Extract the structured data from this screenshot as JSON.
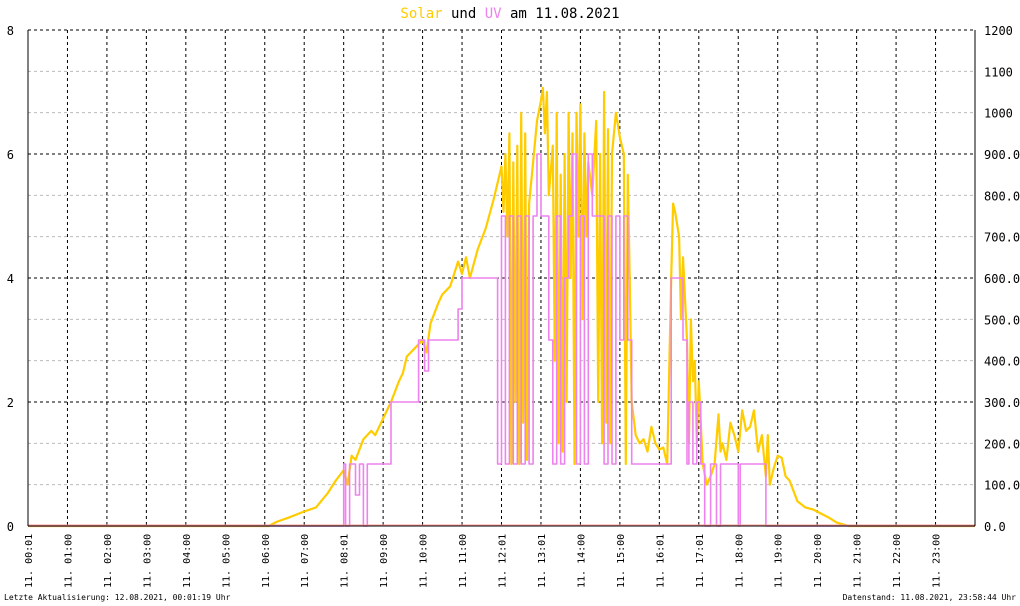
{
  "chart_data": {
    "type": "line",
    "title": {
      "solar_word": "Solar",
      "und_word": " und ",
      "uv_word": "UV",
      "rest": " am 11.08.2021"
    },
    "colors": {
      "solar": "#ffcc00",
      "uv": "#ee82ee",
      "baseline": "#ff9999",
      "grid": "#000000",
      "minor_grid": "#bbbbbb"
    },
    "y_left": {
      "min": 0,
      "max": 8,
      "ticks": [
        "0",
        "2",
        "4",
        "6",
        "8"
      ]
    },
    "y_right": {
      "min": 0,
      "max": 1200,
      "ticks": [
        "0.0",
        "100.0",
        "200.0",
        "300.0",
        "400.0",
        "500.0",
        "600.0",
        "700.0",
        "800.0",
        "900.0",
        "1000",
        "1100",
        "1200"
      ]
    },
    "x_labels": [
      "11. 00:01",
      "11. 01:00",
      "11. 02:00",
      "11. 03:00",
      "11. 04:00",
      "11. 05:00",
      "11. 06:00",
      "11. 07:00",
      "11. 08:01",
      "11. 09:00",
      "11. 10:00",
      "11. 11:00",
      "11. 12:01",
      "11. 13:01",
      "11. 14:00",
      "11. 15:00",
      "11. 16:01",
      "11. 17:01",
      "11. 18:00",
      "11. 19:00",
      "11. 20:00",
      "11. 21:00",
      "11. 22:00",
      "11. 23:00"
    ],
    "grid": true,
    "series": [
      {
        "name": "Solar",
        "axis": "right",
        "points": [
          [
            0.0,
            0
          ],
          [
            6.1,
            0
          ],
          [
            6.3,
            10
          ],
          [
            6.6,
            20
          ],
          [
            7.0,
            35
          ],
          [
            7.3,
            45
          ],
          [
            7.6,
            80
          ],
          [
            7.8,
            110
          ],
          [
            8.0,
            135
          ],
          [
            8.1,
            100
          ],
          [
            8.2,
            170
          ],
          [
            8.3,
            160
          ],
          [
            8.5,
            210
          ],
          [
            8.7,
            230
          ],
          [
            8.8,
            220
          ],
          [
            9.0,
            260
          ],
          [
            9.2,
            300
          ],
          [
            9.4,
            350
          ],
          [
            9.5,
            370
          ],
          [
            9.6,
            410
          ],
          [
            9.8,
            430
          ],
          [
            10.0,
            450
          ],
          [
            10.1,
            420
          ],
          [
            10.2,
            490
          ],
          [
            10.4,
            540
          ],
          [
            10.5,
            560
          ],
          [
            10.7,
            580
          ],
          [
            10.9,
            640
          ],
          [
            11.0,
            610
          ],
          [
            11.1,
            650
          ],
          [
            11.2,
            600
          ],
          [
            11.4,
            670
          ],
          [
            11.6,
            720
          ],
          [
            11.8,
            790
          ],
          [
            11.9,
            830
          ],
          [
            12.0,
            870
          ],
          [
            12.05,
            760
          ],
          [
            12.1,
            900
          ],
          [
            12.15,
            700
          ],
          [
            12.2,
            950
          ],
          [
            12.25,
            150
          ],
          [
            12.3,
            880
          ],
          [
            12.35,
            300
          ],
          [
            12.4,
            920
          ],
          [
            12.45,
            150
          ],
          [
            12.5,
            1000
          ],
          [
            12.55,
            250
          ],
          [
            12.6,
            950
          ],
          [
            12.65,
            160
          ],
          [
            12.7,
            780
          ],
          [
            12.8,
            880
          ],
          [
            12.9,
            980
          ],
          [
            13.0,
            1030
          ],
          [
            13.05,
            1060
          ],
          [
            13.1,
            950
          ],
          [
            13.15,
            1050
          ],
          [
            13.2,
            800
          ],
          [
            13.3,
            920
          ],
          [
            13.35,
            400
          ],
          [
            13.4,
            1000
          ],
          [
            13.45,
            200
          ],
          [
            13.5,
            850
          ],
          [
            13.55,
            180
          ],
          [
            13.6,
            900
          ],
          [
            13.65,
            300
          ],
          [
            13.7,
            1000
          ],
          [
            13.75,
            600
          ],
          [
            13.8,
            950
          ],
          [
            13.85,
            150
          ],
          [
            13.9,
            1000
          ],
          [
            13.95,
            700
          ],
          [
            14.0,
            1020
          ],
          [
            14.05,
            500
          ],
          [
            14.1,
            950
          ],
          [
            14.15,
            700
          ],
          [
            14.2,
            880
          ],
          [
            14.3,
            800
          ],
          [
            14.4,
            980
          ],
          [
            14.45,
            300
          ],
          [
            14.5,
            900
          ],
          [
            14.55,
            200
          ],
          [
            14.6,
            1050
          ],
          [
            14.65,
            250
          ],
          [
            14.7,
            960
          ],
          [
            14.75,
            200
          ],
          [
            14.8,
            900
          ],
          [
            14.9,
            1000
          ],
          [
            15.0,
            940
          ],
          [
            15.1,
            900
          ],
          [
            15.15,
            150
          ],
          [
            15.2,
            850
          ],
          [
            15.25,
            600
          ],
          [
            15.3,
            300
          ],
          [
            15.4,
            220
          ],
          [
            15.5,
            200
          ],
          [
            15.6,
            210
          ],
          [
            15.7,
            180
          ],
          [
            15.8,
            240
          ],
          [
            15.9,
            200
          ],
          [
            16.0,
            185
          ],
          [
            16.1,
            190
          ],
          [
            16.2,
            150
          ],
          [
            16.3,
            600
          ],
          [
            16.35,
            780
          ],
          [
            16.4,
            760
          ],
          [
            16.5,
            700
          ],
          [
            16.55,
            500
          ],
          [
            16.6,
            650
          ],
          [
            16.7,
            450
          ],
          [
            16.75,
            200
          ],
          [
            16.8,
            500
          ],
          [
            16.85,
            350
          ],
          [
            16.9,
            400
          ],
          [
            16.95,
            200
          ],
          [
            17.0,
            350
          ],
          [
            17.1,
            150
          ],
          [
            17.2,
            100
          ],
          [
            17.3,
            120
          ],
          [
            17.4,
            150
          ],
          [
            17.5,
            270
          ],
          [
            17.55,
            180
          ],
          [
            17.6,
            200
          ],
          [
            17.7,
            160
          ],
          [
            17.8,
            250
          ],
          [
            17.9,
            220
          ],
          [
            18.0,
            180
          ],
          [
            18.1,
            280
          ],
          [
            18.2,
            230
          ],
          [
            18.3,
            240
          ],
          [
            18.4,
            280
          ],
          [
            18.5,
            180
          ],
          [
            18.6,
            220
          ],
          [
            18.7,
            120
          ],
          [
            18.75,
            220
          ],
          [
            18.8,
            100
          ],
          [
            18.9,
            140
          ],
          [
            19.0,
            170
          ],
          [
            19.1,
            165
          ],
          [
            19.2,
            120
          ],
          [
            19.3,
            110
          ],
          [
            19.5,
            60
          ],
          [
            19.7,
            45
          ],
          [
            19.9,
            40
          ],
          [
            20.1,
            30
          ],
          [
            20.3,
            20
          ],
          [
            20.5,
            8
          ],
          [
            20.7,
            3
          ],
          [
            20.8,
            0
          ],
          [
            24.0,
            0
          ]
        ]
      },
      {
        "name": "UV",
        "axis": "left",
        "points": [
          [
            0.0,
            0
          ],
          [
            8.0,
            0
          ],
          [
            8.0,
            1
          ],
          [
            8.05,
            1
          ],
          [
            8.05,
            0
          ],
          [
            8.15,
            0
          ],
          [
            8.15,
            1
          ],
          [
            8.3,
            1
          ],
          [
            8.3,
            0.5
          ],
          [
            8.4,
            0.5
          ],
          [
            8.4,
            1
          ],
          [
            8.5,
            1
          ],
          [
            8.5,
            0
          ],
          [
            8.6,
            0
          ],
          [
            8.6,
            1
          ],
          [
            9.2,
            1
          ],
          [
            9.2,
            2
          ],
          [
            9.9,
            2
          ],
          [
            9.9,
            3
          ],
          [
            10.05,
            3
          ],
          [
            10.05,
            2.5
          ],
          [
            10.15,
            2.5
          ],
          [
            10.15,
            3
          ],
          [
            10.9,
            3
          ],
          [
            10.9,
            3.5
          ],
          [
            11.0,
            3.5
          ],
          [
            11.0,
            4
          ],
          [
            11.9,
            4
          ],
          [
            11.9,
            1
          ],
          [
            12.0,
            1
          ],
          [
            12.0,
            5
          ],
          [
            12.1,
            5
          ],
          [
            12.1,
            1
          ],
          [
            12.2,
            1
          ],
          [
            12.2,
            5
          ],
          [
            12.3,
            5
          ],
          [
            12.3,
            1
          ],
          [
            12.4,
            1
          ],
          [
            12.4,
            5
          ],
          [
            12.5,
            5
          ],
          [
            12.5,
            1
          ],
          [
            12.6,
            1
          ],
          [
            12.6,
            5
          ],
          [
            12.7,
            5
          ],
          [
            12.7,
            1
          ],
          [
            12.8,
            1
          ],
          [
            12.8,
            5
          ],
          [
            12.9,
            5
          ],
          [
            12.9,
            6
          ],
          [
            13.0,
            6
          ],
          [
            13.0,
            5
          ],
          [
            13.2,
            5
          ],
          [
            13.2,
            3
          ],
          [
            13.3,
            3
          ],
          [
            13.3,
            1
          ],
          [
            13.4,
            1
          ],
          [
            13.4,
            5
          ],
          [
            13.5,
            5
          ],
          [
            13.5,
            1
          ],
          [
            13.6,
            1
          ],
          [
            13.6,
            4
          ],
          [
            13.7,
            4
          ],
          [
            13.7,
            5
          ],
          [
            13.8,
            5
          ],
          [
            13.8,
            6
          ],
          [
            13.9,
            6
          ],
          [
            13.9,
            1
          ],
          [
            14.0,
            1
          ],
          [
            14.0,
            5
          ],
          [
            14.1,
            5
          ],
          [
            14.1,
            1
          ],
          [
            14.2,
            1
          ],
          [
            14.2,
            6
          ],
          [
            14.3,
            6
          ],
          [
            14.3,
            5
          ],
          [
            14.6,
            5
          ],
          [
            14.6,
            1
          ],
          [
            14.7,
            1
          ],
          [
            14.7,
            5
          ],
          [
            14.8,
            5
          ],
          [
            14.8,
            1
          ],
          [
            14.9,
            1
          ],
          [
            14.9,
            5
          ],
          [
            15.0,
            5
          ],
          [
            15.0,
            3
          ],
          [
            15.1,
            3
          ],
          [
            15.1,
            5
          ],
          [
            15.2,
            5
          ],
          [
            15.2,
            3
          ],
          [
            15.3,
            3
          ],
          [
            15.3,
            1
          ],
          [
            16.3,
            1
          ],
          [
            16.3,
            4
          ],
          [
            16.6,
            4
          ],
          [
            16.6,
            3
          ],
          [
            16.7,
            3
          ],
          [
            16.7,
            1
          ],
          [
            16.75,
            1
          ],
          [
            16.75,
            2
          ],
          [
            16.85,
            2
          ],
          [
            16.85,
            1
          ],
          [
            16.95,
            1
          ],
          [
            16.95,
            2
          ],
          [
            17.05,
            2
          ],
          [
            17.05,
            1
          ],
          [
            17.15,
            1
          ],
          [
            17.15,
            0
          ],
          [
            17.3,
            0
          ],
          [
            17.3,
            1
          ],
          [
            17.45,
            1
          ],
          [
            17.45,
            0
          ],
          [
            17.55,
            0
          ],
          [
            17.55,
            1
          ],
          [
            18.0,
            1
          ],
          [
            18.0,
            0
          ],
          [
            18.05,
            0
          ],
          [
            18.05,
            1
          ],
          [
            18.7,
            1
          ],
          [
            18.7,
            0
          ],
          [
            19.9,
            0
          ],
          [
            19.9,
            0
          ],
          [
            24.0,
            0
          ]
        ]
      }
    ]
  },
  "footer": {
    "left": "Letzte Aktualisierung: 12.08.2021, 00:01:19 Uhr",
    "right": "Datenstand: 11.08.2021, 23:58:44 Uhr"
  }
}
